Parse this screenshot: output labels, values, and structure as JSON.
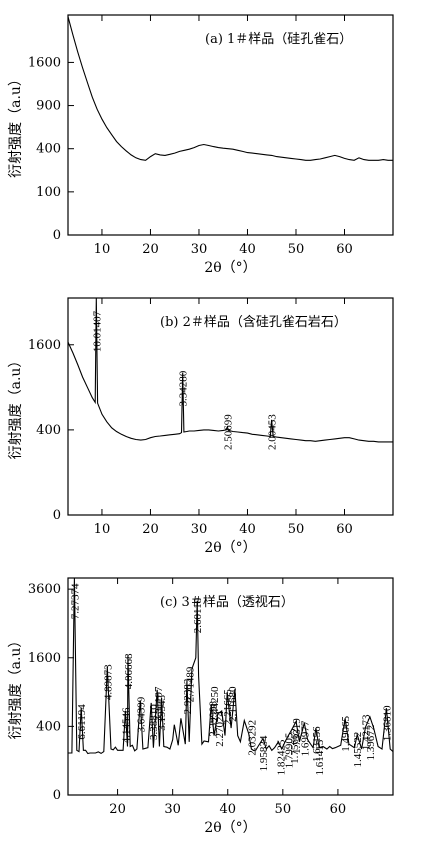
{
  "chart_data": [
    {
      "type": "line",
      "title": "(a)  1＃样品（硅孔雀石）",
      "xlabel": "2θ（°）",
      "ylabel": "衍射强度（a.u）",
      "xlim": [
        3,
        70
      ],
      "ylim": [
        0,
        2600
      ],
      "yscale": "sqrt",
      "xticks": [
        10,
        20,
        30,
        40,
        50,
        60
      ],
      "yticks": [
        0,
        100,
        400,
        900,
        1600
      ],
      "series": [
        {
          "x": [
            3,
            4,
            5,
            6,
            7,
            8,
            9,
            10,
            11,
            12,
            13,
            14,
            15,
            16,
            17,
            18,
            19,
            20,
            21,
            22,
            23,
            24,
            25,
            26,
            27,
            28,
            29,
            30,
            31,
            32,
            33,
            34,
            35,
            36,
            37,
            38,
            39,
            40,
            41,
            42,
            43,
            44,
            45,
            46,
            47,
            48,
            49,
            50,
            51,
            52,
            53,
            54,
            55,
            56,
            57,
            58,
            59,
            60,
            61,
            62,
            63,
            64,
            65,
            66,
            67,
            68,
            69,
            70
          ],
          "values": [
            2560,
            2150,
            1800,
            1500,
            1250,
            1020,
            850,
            720,
            620,
            540,
            470,
            420,
            380,
            345,
            320,
            305,
            300,
            330,
            355,
            345,
            340,
            350,
            360,
            375,
            385,
            395,
            410,
            430,
            440,
            430,
            420,
            410,
            405,
            400,
            395,
            385,
            375,
            365,
            360,
            355,
            350,
            345,
            340,
            330,
            325,
            320,
            315,
            310,
            305,
            300,
            300,
            305,
            310,
            320,
            330,
            340,
            330,
            315,
            305,
            300,
            320,
            305,
            300,
            300,
            300,
            305,
            300,
            300
          ]
        }
      ],
      "peak_labels": []
    },
    {
      "type": "line",
      "title": "(b)  2＃样品（含硅孔雀石岩石）",
      "xlabel": "2θ（°）",
      "ylabel": "衍射强度（a.u）",
      "xlim": [
        3,
        70
      ],
      "ylim": [
        0,
        2600
      ],
      "yscale": "sqrt",
      "xticks": [
        10,
        20,
        30,
        40,
        50,
        60
      ],
      "yticks": [
        0,
        400,
        1600
      ],
      "series": [
        {
          "x": [
            3,
            4,
            5,
            6,
            7,
            8,
            8.6,
            8.83,
            9.1,
            10,
            11,
            12,
            13,
            14,
            15,
            16,
            17,
            18,
            19,
            20,
            21,
            22,
            23,
            24,
            25,
            26,
            26.4,
            26.64,
            26.9,
            27.5,
            28,
            29,
            30,
            31,
            32,
            33,
            34,
            35,
            35.6,
            35.85,
            36.1,
            37,
            38,
            39,
            40,
            41,
            42,
            43,
            44,
            44.7,
            44.98,
            45.3,
            46,
            47,
            48,
            49,
            50,
            51,
            52,
            53,
            54,
            55,
            56,
            57,
            58,
            59,
            60,
            61,
            62,
            63,
            64,
            65,
            66,
            67,
            68,
            69,
            70
          ],
          "values": [
            1650,
            1450,
            1250,
            1050,
            900,
            760,
            700,
            2600,
            690,
            560,
            480,
            420,
            385,
            360,
            340,
            325,
            315,
            310,
            315,
            330,
            340,
            345,
            350,
            355,
            360,
            365,
            375,
            1120,
            380,
            385,
            390,
            390,
            395,
            400,
            400,
            395,
            390,
            395,
            400,
            430,
            395,
            385,
            380,
            375,
            370,
            360,
            355,
            350,
            345,
            340,
            500,
            340,
            335,
            330,
            325,
            320,
            315,
            310,
            305,
            305,
            300,
            305,
            310,
            315,
            320,
            325,
            330,
            330,
            320,
            310,
            305,
            300,
            300,
            295,
            295,
            295,
            295
          ]
        }
      ],
      "peak_labels": [
        {
          "x": 8.83,
          "y": 2300,
          "text": "10.01407"
        },
        {
          "x": 26.64,
          "y": 1150,
          "text": "3.34280"
        },
        {
          "x": 35.85,
          "y": 560,
          "text": "2.50699"
        },
        {
          "x": 44.98,
          "y": 560,
          "text": "2.00453"
        }
      ]
    },
    {
      "type": "line",
      "title": "(c)  3＃样品（透视石）",
      "xlabel": "2θ（°）",
      "ylabel": "衍射强度（a.u）",
      "xlim": [
        11,
        70
      ],
      "ylim": [
        0,
        4000
      ],
      "yscale": "sqrt",
      "xticks": [
        20,
        30,
        40,
        50,
        60
      ],
      "yticks": [
        0,
        400,
        1600,
        3600
      ],
      "series": [
        {
          "x": [
            11,
            11.7,
            12.16,
            12.6,
            13.0,
            13.39,
            13.8,
            15,
            16,
            17.5,
            18.14,
            18.8,
            20,
            21.0,
            21.42,
            21.8,
            21.87,
            22.3,
            23.5,
            24.12,
            24.6,
            25.5,
            26.1,
            26.5,
            27.2,
            27.6,
            28.0,
            28.4,
            29.5,
            30.0,
            30.3,
            31.0,
            31.5,
            32.3,
            32.58,
            33.0,
            33.5,
            34.2,
            34.45,
            34.7,
            35.3,
            36.5,
            37.0,
            37.5,
            38.2,
            38.9,
            39.5,
            39.9,
            40.6,
            41.3,
            41.8,
            42.3,
            43.0,
            43.8,
            44.3,
            45.5,
            46.4,
            47.0,
            48.5,
            49.2,
            49.8,
            50.5,
            51.0,
            51.6,
            52.4,
            53.0,
            53.9,
            54.5,
            55.5,
            56.0,
            56.6,
            57.3,
            58.0,
            59.5,
            60.5,
            61.3,
            62.0,
            63.0,
            63.5,
            64.3,
            65.0,
            65.8,
            66.5,
            67.3,
            68.0,
            68.8,
            69.5,
            70
          ],
          "values": [
            150,
            150,
            4000,
            170,
            160,
            650,
            170,
            150,
            150,
            160,
            1400,
            180,
            170,
            170,
            600,
            200,
            1650,
            200,
            180,
            760,
            180,
            190,
            720,
            190,
            940,
            200,
            800,
            200,
            180,
            260,
            420,
            210,
            500,
            220,
            1100,
            240,
            1350,
            1600,
            3200,
            1200,
            220,
            240,
            700,
            300,
            560,
            600,
            300,
            900,
            380,
            950,
            300,
            240,
            470,
            320,
            180,
            200,
            270,
            180,
            190,
            240,
            180,
            250,
            300,
            360,
            460,
            240,
            440,
            260,
            190,
            380,
            190,
            200,
            180,
            190,
            210,
            500,
            220,
            190,
            310,
            180,
            390,
            520,
            380,
            200,
            180,
            640,
            180,
            160
          ]
        }
      ],
      "peak_labels": [
        {
          "x": 12.16,
          "y": 3800,
          "text": "7.27374"
        },
        {
          "x": 13.39,
          "y": 700,
          "text": "6.61194"
        },
        {
          "x": 18.14,
          "y": 1450,
          "text": "4.89873"
        },
        {
          "x": 21.42,
          "y": 650,
          "text": "4.14546"
        },
        {
          "x": 21.87,
          "y": 1700,
          "text": "4.06668"
        },
        {
          "x": 24.12,
          "y": 820,
          "text": "3.64399"
        },
        {
          "x": 26.45,
          "y": 700,
          "text": "3.38810"
        },
        {
          "x": 27.35,
          "y": 1000,
          "text": "3.31197"
        },
        {
          "x": 27.92,
          "y": 850,
          "text": "3.19343"
        },
        {
          "x": 32.58,
          "y": 1150,
          "text": "2.92383"
        },
        {
          "x": 33.05,
          "y": 1400,
          "text": "2.71489"
        },
        {
          "x": 34.45,
          "y": 3300,
          "text": "2.60110"
        },
        {
          "x": 37.2,
          "y": 750,
          "text": "2.39998"
        },
        {
          "x": 37.5,
          "y": 1000,
          "text": "2.44250"
        },
        {
          "x": 38.4,
          "y": 600,
          "text": "2.27024"
        },
        {
          "x": 39.9,
          "y": 950,
          "text": "2.21665"
        },
        {
          "x": 40.76,
          "y": 1000,
          "text": "2.11680"
        },
        {
          "x": 44.3,
          "y": 480,
          "text": "2.03292"
        },
        {
          "x": 46.4,
          "y": 300,
          "text": "1.95834"
        },
        {
          "x": 49.6,
          "y": 260,
          "text": "1.82425"
        },
        {
          "x": 51.0,
          "y": 330,
          "text": "1.79905"
        },
        {
          "x": 52.0,
          "y": 380,
          "text": "1.75662"
        },
        {
          "x": 52.4,
          "y": 500,
          "text": "1.73319"
        },
        {
          "x": 53.9,
          "y": 470,
          "text": "1.69977"
        },
        {
          "x": 56.0,
          "y": 400,
          "text": "1.63156"
        },
        {
          "x": 56.6,
          "y": 260,
          "text": "1.61415"
        },
        {
          "x": 61.3,
          "y": 530,
          "text": "1.49065"
        },
        {
          "x": 63.5,
          "y": 340,
          "text": "1.45522"
        },
        {
          "x": 65.0,
          "y": 550,
          "text": "1.42173"
        },
        {
          "x": 65.8,
          "y": 420,
          "text": "1.39672"
        },
        {
          "x": 68.8,
          "y": 680,
          "text": "1.36810"
        }
      ]
    }
  ]
}
